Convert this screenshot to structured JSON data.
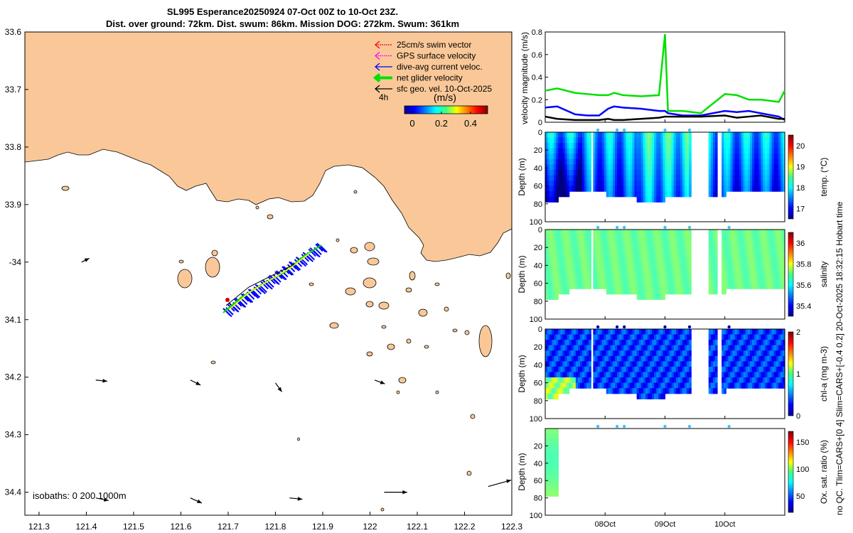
{
  "header": {
    "title_line1": "SL995 Esperance20250924 07-Oct 00Z to 10-Oct 23Z.",
    "title_line2": "Dist. over ground: 72km. Dist. swum: 86km. Mission DOG: 272km. Swum: 361km"
  },
  "colors": {
    "land": "#fac898",
    "swim_vector": "#ff0000",
    "gps_velocity": "#ff00ff",
    "dive_avg": "#0000ff",
    "net_velocity": "#00e000",
    "sfc_geo": "#000000"
  },
  "map": {
    "legend": [
      {
        "label": "25cm/s swim vector",
        "color": "#ff0000"
      },
      {
        "label": "GPS surface velocity",
        "color": "#ff00ff"
      },
      {
        "label": "dive-avg current veloc.",
        "color": "#0000ff"
      },
      {
        "label": "net glider velocity",
        "color": "#00e000"
      },
      {
        "label": "sfc geo. vel. 10-Oct-2025",
        "color": "#000000"
      }
    ],
    "label_4h": "4h",
    "colorbar_title": "(m/s)",
    "colorbar_ticks": [
      "0",
      "0.2",
      "0.4"
    ],
    "isobaths_label": "isobaths: 0   200  1000m",
    "lon_ticks": [
      "121.3",
      "121.4",
      "121.5",
      "121.6",
      "121.7",
      "121.8",
      "121.9",
      "122",
      "122.1",
      "122.2",
      "122.3"
    ],
    "lat_ticks": [
      "33.6",
      "33.7",
      "33.8",
      "33.9",
      "-34",
      "34.1",
      "34.2",
      "34.3",
      "34.4"
    ],
    "current_arrows": [
      {
        "lon": 121.39,
        "lat": -34.0,
        "u": 0.06,
        "v": 0.03
      },
      {
        "lon": 121.42,
        "lat": -34.205,
        "u": 0.09,
        "v": -0.01
      },
      {
        "lon": 121.62,
        "lat": -34.205,
        "u": 0.08,
        "v": -0.04
      },
      {
        "lon": 121.8,
        "lat": -34.21,
        "u": 0.05,
        "v": -0.07
      },
      {
        "lon": 122.01,
        "lat": -34.205,
        "u": 0.08,
        "v": -0.03
      },
      {
        "lon": 121.42,
        "lat": -34.41,
        "u": 0.1,
        "v": -0.02
      },
      {
        "lon": 121.62,
        "lat": -34.41,
        "u": 0.09,
        "v": -0.04
      },
      {
        "lon": 121.83,
        "lat": -34.41,
        "u": 0.1,
        "v": -0.01
      },
      {
        "lon": 122.03,
        "lat": -34.4,
        "u": 0.18,
        "v": 0.0
      },
      {
        "lon": 122.25,
        "lat": -34.39,
        "u": 0.18,
        "v": 0.05
      }
    ]
  },
  "chart_data": [
    {
      "type": "line",
      "ylabel": "velocity magnitude (m/s)",
      "ylim": [
        0,
        0.8
      ],
      "yticks": [
        "0",
        "0.2",
        "0.4",
        "0.6",
        "0.8"
      ],
      "x_days": [
        0,
        0.2,
        0.5,
        0.7,
        0.9,
        1.05,
        1.15,
        1.3,
        1.6,
        1.9,
        2.0,
        2.05,
        2.3,
        2.6,
        3.0,
        3.2,
        3.4,
        3.6,
        3.9,
        4.0
      ],
      "series": [
        {
          "name": "net glider velocity",
          "color": "#00e000",
          "values": [
            0.28,
            0.3,
            0.26,
            0.25,
            0.24,
            0.24,
            0.26,
            0.24,
            0.23,
            0.24,
            0.78,
            0.1,
            0.1,
            0.08,
            0.25,
            0.24,
            0.2,
            0.2,
            0.18,
            0.28
          ]
        },
        {
          "name": "dive-avg current veloc.",
          "color": "#0000ff",
          "values": [
            0.13,
            0.14,
            0.07,
            0.06,
            0.06,
            0.12,
            0.14,
            0.13,
            0.12,
            0.1,
            0.1,
            0.08,
            0.06,
            0.06,
            0.1,
            0.09,
            0.1,
            0.08,
            0.05,
            0.02
          ]
        },
        {
          "name": "sfc geo. vel.",
          "color": "#000000",
          "values": [
            0.05,
            0.03,
            0.02,
            0.02,
            0.02,
            0.03,
            0.02,
            0.02,
            0.03,
            0.04,
            0.05,
            0.05,
            0.05,
            0.05,
            0.06,
            0.04,
            0.05,
            0.06,
            0.03,
            0.03
          ]
        }
      ]
    },
    {
      "type": "heatmap",
      "variable": "temp",
      "ylabel": "Depth (m)",
      "colorbar_label": "temp. (°C)",
      "clim": [
        16.5,
        20.5
      ],
      "colorbar_ticks": [
        "17",
        "18",
        "19",
        "20"
      ],
      "yticks": [
        "0",
        "20",
        "40",
        "60",
        "80",
        "100"
      ]
    },
    {
      "type": "heatmap",
      "variable": "salinity",
      "ylabel": "Depth (m)",
      "colorbar_label": "salinity",
      "clim": [
        35.3,
        36.1
      ],
      "colorbar_ticks": [
        "35.4",
        "35.6",
        "35.8",
        "36"
      ],
      "yticks": [
        "0",
        "20",
        "40",
        "60",
        "80",
        "100"
      ]
    },
    {
      "type": "heatmap",
      "variable": "chl-a",
      "ylabel": "Depth (m)",
      "colorbar_label": "chl-a (mg m-3)",
      "clim": [
        0,
        2
      ],
      "colorbar_ticks": [
        "0",
        "1",
        "2"
      ],
      "yticks": [
        "0",
        "20",
        "40",
        "60",
        "80",
        "100"
      ]
    },
    {
      "type": "heatmap",
      "variable": "oxygen saturation",
      "ylabel": "Depth (m)",
      "colorbar_label": "Ox. sat. ratio (%)",
      "clim": [
        20,
        170
      ],
      "colorbar_ticks": [
        "50",
        "100",
        "150"
      ],
      "yticks": [
        "20",
        "40",
        "60",
        "80",
        "100"
      ]
    }
  ],
  "time_axis": {
    "start": "07-Oct 00Z",
    "end": "10-Oct 23Z",
    "ticks": [
      "08Oct",
      "09Oct",
      "10Oct"
    ]
  },
  "side_note": "no QC. Tlim=CARS+[0 4] Slim=CARS+[-0.4 0.2] 20-Oct-2025 18:32:15 Hobart time"
}
